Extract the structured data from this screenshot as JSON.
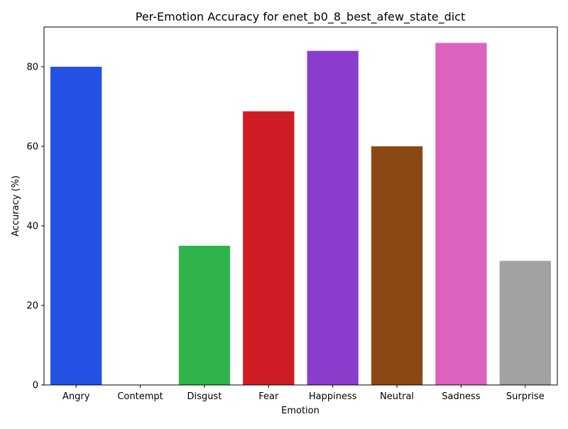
{
  "chart_data": {
    "type": "bar",
    "title": "Per-Emotion Accuracy for enet_b0_8_best_afew_state_dict",
    "xlabel": "Emotion",
    "ylabel": "Accuracy (%)",
    "categories": [
      "Angry",
      "Contempt",
      "Disgust",
      "Fear",
      "Happiness",
      "Neutral",
      "Sadness",
      "Surprise"
    ],
    "values": [
      80.0,
      0.0,
      35.0,
      68.8,
      84.0,
      60.0,
      86.0,
      31.2
    ],
    "colors": [
      "#2251e3",
      "#ff7f0e",
      "#2fb44b",
      "#cf1c25",
      "#8a3dcc",
      "#8b4813",
      "#dd62bd",
      "#a2a2a2"
    ],
    "ylim": [
      0,
      90
    ],
    "yticks": [
      0,
      20,
      40,
      60,
      80
    ],
    "grid": false
  }
}
